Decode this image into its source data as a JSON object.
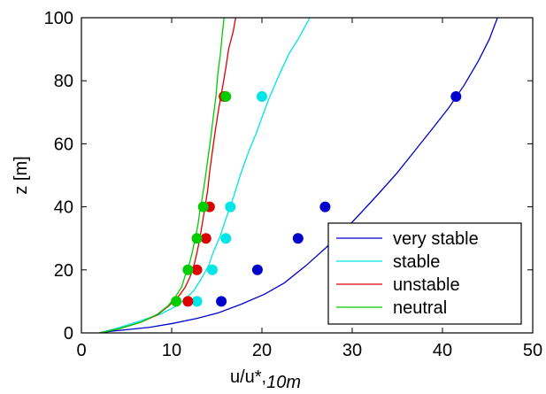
{
  "chart_data": {
    "type": "line",
    "xlabel": "u/u*,",
    "xlabel_suffix": "10m",
    "ylabel": "z [m]",
    "xlim": [
      0,
      50
    ],
    "ylim": [
      0,
      100
    ],
    "xticks": [
      0,
      10,
      20,
      30,
      40,
      50
    ],
    "yticks": [
      0,
      20,
      40,
      60,
      80,
      100
    ],
    "grid": false,
    "legend_position": "bottom-right",
    "series": [
      {
        "name": "very stable",
        "color": "#0000cc",
        "curve": [
          [
            2,
            0
          ],
          [
            3.2,
            0.5
          ],
          [
            5,
            1
          ],
          [
            7.6,
            1.8
          ],
          [
            10.1,
            3
          ],
          [
            12.8,
            4.6
          ],
          [
            15.2,
            6.4
          ],
          [
            17.7,
            9.1
          ],
          [
            20.3,
            12.3
          ],
          [
            22.5,
            15.9
          ],
          [
            24.9,
            21.4
          ],
          [
            27,
            26.8
          ],
          [
            29.2,
            32.7
          ],
          [
            31,
            38.2
          ],
          [
            32.9,
            44.1
          ],
          [
            34.9,
            50.5
          ],
          [
            36.8,
            57.3
          ],
          [
            38.8,
            64.5
          ],
          [
            40.7,
            71.4
          ],
          [
            42.4,
            78.6
          ],
          [
            44,
            86.4
          ],
          [
            45.2,
            93.2
          ],
          [
            46.1,
            100
          ]
        ],
        "points": [
          [
            15.5,
            10
          ],
          [
            19.5,
            20
          ],
          [
            24,
            30
          ],
          [
            27,
            40
          ],
          [
            41.5,
            75
          ]
        ]
      },
      {
        "name": "stable",
        "color": "#00e5e5",
        "curve": [
          [
            2,
            0
          ],
          [
            4.3,
            1.8
          ],
          [
            6.5,
            3.8
          ],
          [
            8.8,
            6
          ],
          [
            10.3,
            8.2
          ],
          [
            11.6,
            10.9
          ],
          [
            12.5,
            13.6
          ],
          [
            13.3,
            17.3
          ],
          [
            14.1,
            21.4
          ],
          [
            14.6,
            25.5
          ],
          [
            15.4,
            30.9
          ],
          [
            15.8,
            34.5
          ],
          [
            16.3,
            38.6
          ],
          [
            16.9,
            43.6
          ],
          [
            17.6,
            50
          ],
          [
            18.5,
            57.3
          ],
          [
            19.4,
            63.6
          ],
          [
            20.1,
            69.1
          ],
          [
            20.8,
            74.5
          ],
          [
            21.9,
            81.8
          ],
          [
            23,
            88.6
          ],
          [
            24.1,
            93.6
          ],
          [
            25.3,
            100
          ]
        ],
        "points": [
          [
            12.8,
            10
          ],
          [
            14.5,
            20
          ],
          [
            16,
            30
          ],
          [
            16.5,
            40
          ],
          [
            20,
            75
          ]
        ]
      },
      {
        "name": "unstable",
        "color": "#dd0000",
        "curve": [
          [
            2,
            0
          ],
          [
            4.3,
            1.4
          ],
          [
            6.6,
            3.4
          ],
          [
            8.4,
            5.7
          ],
          [
            9.7,
            8.6
          ],
          [
            10.9,
            12.1
          ],
          [
            11.5,
            14.5
          ],
          [
            12.1,
            18.2
          ],
          [
            12.5,
            21.8
          ],
          [
            12.8,
            25.5
          ],
          [
            13.1,
            29.5
          ],
          [
            13.3,
            33.2
          ],
          [
            13.5,
            36.6
          ],
          [
            13.7,
            40
          ],
          [
            14,
            45.5
          ],
          [
            14.2,
            50.9
          ],
          [
            14.5,
            57.3
          ],
          [
            14.8,
            63.6
          ],
          [
            15.2,
            70.9
          ],
          [
            15.6,
            77.3
          ],
          [
            16,
            84.1
          ],
          [
            16.3,
            90
          ],
          [
            16.8,
            95.5
          ],
          [
            17.1,
            100
          ]
        ],
        "points": [
          [
            11.8,
            10
          ],
          [
            12.8,
            20
          ],
          [
            13.8,
            30
          ],
          [
            14.2,
            40
          ],
          [
            15.8,
            75
          ]
        ]
      },
      {
        "name": "neutral",
        "color": "#00cc00",
        "curve": [
          [
            2,
            0
          ],
          [
            4.3,
            1.4
          ],
          [
            6.6,
            3.4
          ],
          [
            8.4,
            5.9
          ],
          [
            9.6,
            8.6
          ],
          [
            10.4,
            11.4
          ],
          [
            11.1,
            14.5
          ],
          [
            11.5,
            18.2
          ],
          [
            12,
            22.3
          ],
          [
            12.3,
            25.9
          ],
          [
            12.6,
            30
          ],
          [
            12.9,
            34.1
          ],
          [
            13.1,
            38.2
          ],
          [
            13.4,
            43.2
          ],
          [
            13.7,
            48.6
          ],
          [
            14,
            55
          ],
          [
            14.3,
            61.4
          ],
          [
            14.6,
            68.2
          ],
          [
            14.9,
            75
          ],
          [
            15.1,
            81.8
          ],
          [
            15.4,
            88.6
          ],
          [
            15.6,
            94.5
          ],
          [
            15.8,
            100
          ]
        ],
        "points": [
          [
            10.5,
            10
          ],
          [
            11.8,
            20
          ],
          [
            12.8,
            30
          ],
          [
            13.5,
            40
          ],
          [
            16,
            75
          ]
        ]
      }
    ]
  }
}
